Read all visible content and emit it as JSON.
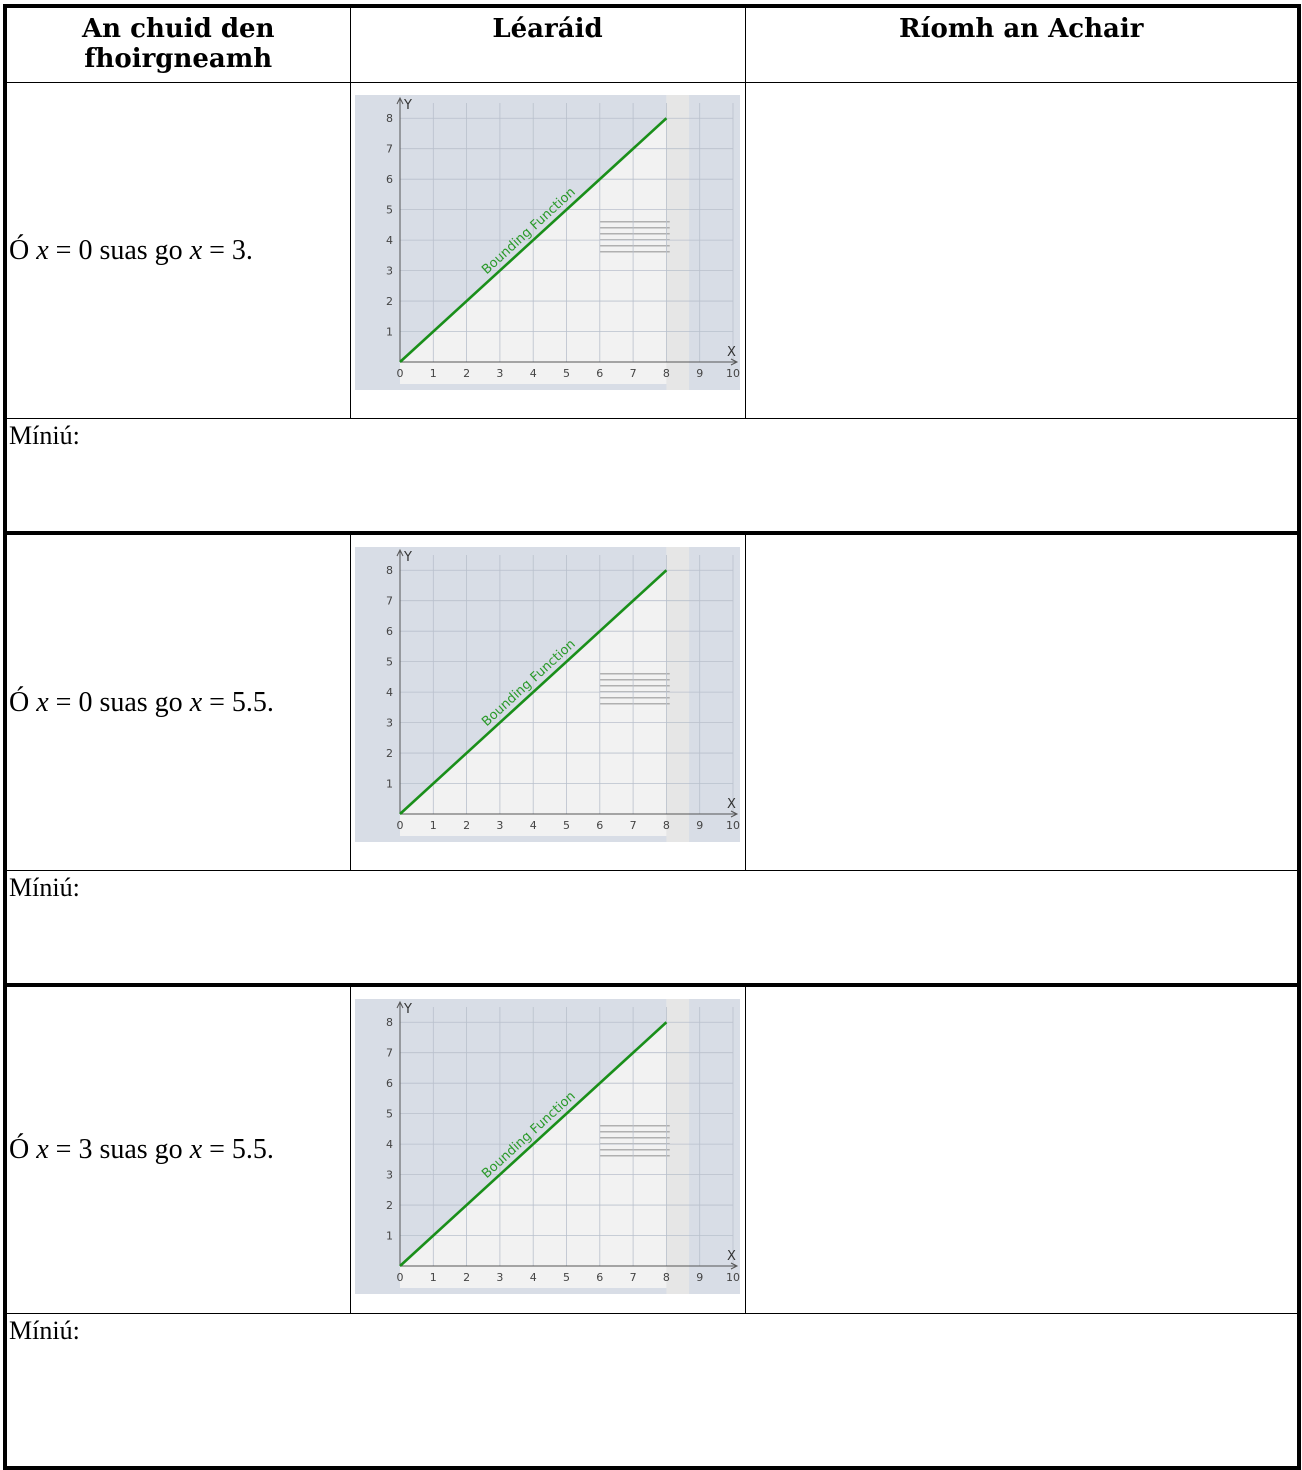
{
  "table": {
    "headers": [
      "An chuid den fhoirgneamh",
      "Léaráid",
      "Ríomh an Achair"
    ],
    "header_lines_col1": [
      "An chuid den",
      "fhoirgneamh"
    ]
  },
  "rows": [
    {
      "range_prefix": "Ó ",
      "var1": "x",
      "eq1": " = 0 suas go ",
      "var2": "x",
      "eq2": " = 3.",
      "explain_label": "Míniú:"
    },
    {
      "range_prefix": "Ó ",
      "var1": "x",
      "eq1": " = 0 suas go ",
      "var2": "x",
      "eq2": " = 5.5.",
      "explain_label": "Míniú:"
    },
    {
      "range_prefix": "Ó ",
      "var1": "x",
      "eq1": " = 3 suas go ",
      "var2": "x",
      "eq2": " = 5.5.",
      "explain_label": "Míniú:"
    }
  ],
  "chart_data": {
    "type": "line",
    "xlabel": "X",
    "ylabel": "Y",
    "xlim": [
      0,
      10
    ],
    "ylim": [
      0,
      8.5
    ],
    "x_ticks": [
      "0",
      "1",
      "2",
      "3",
      "4",
      "5",
      "6",
      "7",
      "8",
      "9",
      "10"
    ],
    "y_ticks": [
      "1",
      "2",
      "3",
      "4",
      "5",
      "6",
      "7",
      "8"
    ],
    "series": [
      {
        "name": "Bounding Function",
        "x": [
          0,
          8
        ],
        "y": [
          0,
          8
        ],
        "color": "#1a8f1a"
      }
    ],
    "grid": true,
    "colors": {
      "background": "#d8dde6",
      "building": "#f2f2f2",
      "line": "#1a8f1a"
    }
  }
}
